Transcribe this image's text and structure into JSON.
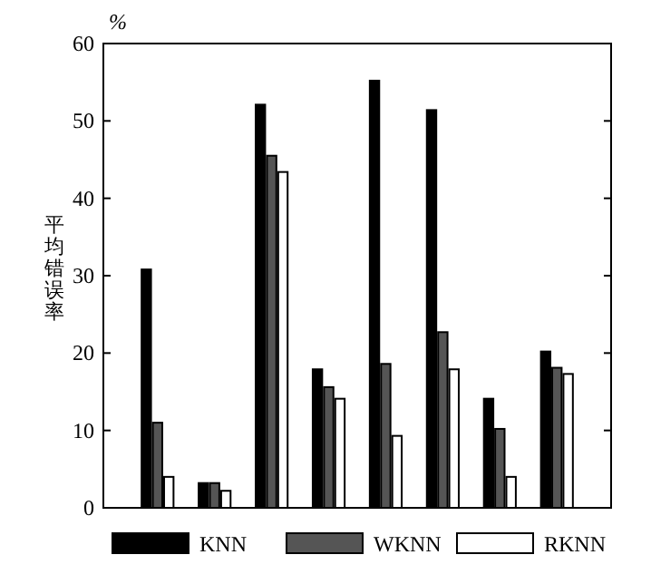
{
  "chart_data": {
    "type": "bar",
    "ylabel": "平均错误率",
    "annotations": [
      "%"
    ],
    "categories": [
      null,
      null,
      null,
      null,
      null,
      null,
      null,
      null
    ],
    "series": [
      {
        "name": "KNN",
        "color": "#000000",
        "values": [
          30.8,
          3.2,
          52.1,
          17.9,
          55.2,
          51.4,
          14.1,
          20.2
        ]
      },
      {
        "name": "WKNN",
        "color": "#555555",
        "values": [
          11.0,
          3.2,
          45.5,
          15.6,
          18.6,
          22.7,
          10.2,
          18.1
        ]
      },
      {
        "name": "RKNN",
        "color": "#ffffff",
        "values": [
          4.0,
          2.2,
          43.4,
          14.1,
          9.3,
          17.9,
          4.0,
          17.3
        ]
      }
    ],
    "ylim": [
      0,
      60
    ],
    "yticks": [
      0,
      10,
      20,
      30,
      40,
      50,
      60
    ],
    "grid": false,
    "legend": "bottom"
  }
}
